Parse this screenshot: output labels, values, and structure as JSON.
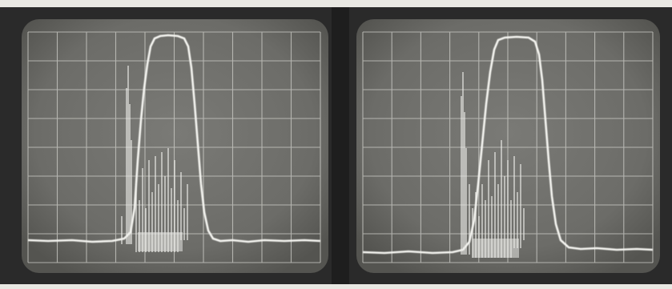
{
  "scene": "two-oscilloscope-spectrum-displays",
  "left_display": {
    "caption_line1": "",
    "caption_line2": "",
    "corner_text": ""
  },
  "right_display": {
    "caption_line1": "",
    "caption_line2": "",
    "corner_text": ""
  },
  "colors": {
    "photo_background": "#e7e6e1",
    "bezel": "#2a2a2a",
    "screen": "#6f6f6b",
    "grid": "#bdbdb8",
    "trace": "#f4f4f0"
  }
}
